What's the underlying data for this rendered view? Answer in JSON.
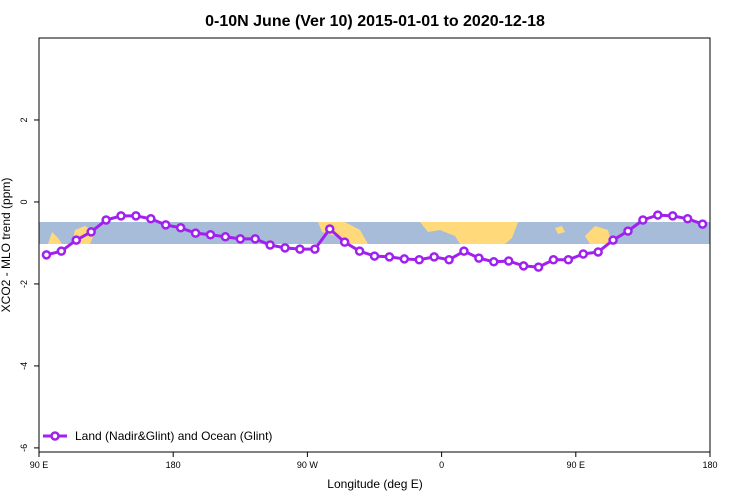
{
  "chart_data": {
    "type": "line",
    "title": "0-10N June (Ver 10)   2015-01-01 to 2020-12-18",
    "x_label": "Longitude (deg E)",
    "y_label": "XCO2 - MLO trend (ppm)",
    "x": [
      95,
      105,
      115,
      125,
      135,
      145,
      155,
      165,
      175,
      185,
      195,
      205,
      215,
      225,
      235,
      245,
      255,
      265,
      275,
      285,
      295,
      305,
      315,
      325,
      335,
      345,
      355,
      365,
      375,
      385,
      395,
      405,
      415,
      425,
      435,
      445,
      455,
      465,
      475,
      485,
      495,
      505,
      515,
      525,
      535
    ],
    "series": [
      {
        "name": "Land (Nadir&Glint) and Ocean (Glint)",
        "color": "#a020f0",
        "values": [
          -1.29,
          -1.2,
          -0.93,
          -0.73,
          -0.44,
          -0.34,
          -0.34,
          -0.41,
          -0.56,
          -0.63,
          -0.76,
          -0.8,
          -0.85,
          -0.9,
          -0.9,
          -1.05,
          -1.12,
          -1.15,
          -1.15,
          -0.66,
          -0.98,
          -1.2,
          -1.32,
          -1.34,
          -1.39,
          -1.41,
          -1.34,
          -1.41,
          -1.2,
          -1.37,
          -1.46,
          -1.44,
          -1.56,
          -1.59,
          -1.41,
          -1.41,
          -1.27,
          -1.22,
          -0.93,
          -0.71,
          -0.44,
          -0.32,
          -0.34,
          -0.41,
          -0.54
        ]
      }
    ],
    "xlim": [
      90,
      540
    ],
    "xticks": [
      {
        "value": 90,
        "label": "90 E"
      },
      180,
      {
        "value": 270,
        "label": "90 W"
      },
      {
        "value": 360,
        "label": "0"
      },
      {
        "value": 450,
        "label": "90 E"
      },
      {
        "value": 540,
        "label": "180"
      }
    ],
    "ylim": [
      -6.1,
      4
    ],
    "yticks": [
      -6,
      -4,
      -2,
      0,
      2
    ],
    "legend": "bottom-left"
  }
}
